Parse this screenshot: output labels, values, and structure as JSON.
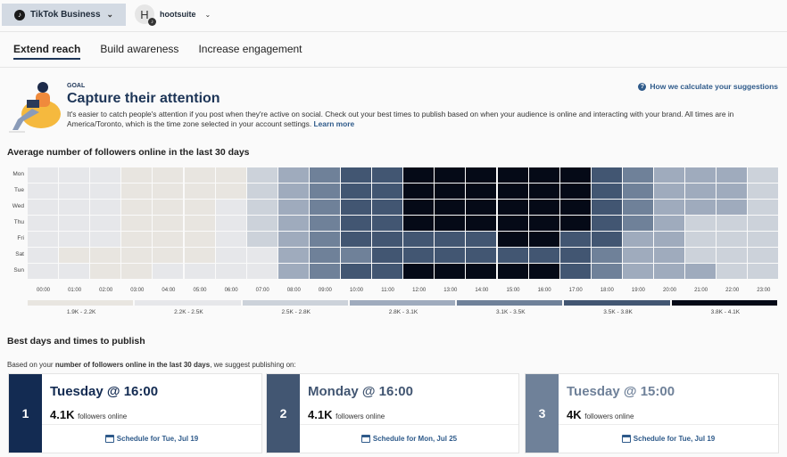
{
  "header": {
    "account": "TikTok Business",
    "org_initial": "H",
    "org": "hootsuite"
  },
  "tabs": [
    {
      "label": "Extend reach",
      "active": true
    },
    {
      "label": "Build awareness"
    },
    {
      "label": "Increase engagement"
    }
  ],
  "goal": {
    "label": "GOAL",
    "title": "Capture their attention",
    "description": "It's easier to catch people's attention if you post when they're active on social. Check out your best times to publish based on when your audience is online and interacting with your brand. All times are in America/Toronto, which is the time zone selected in your account settings.",
    "learn_more": "Learn more",
    "how_link": "How we calculate your suggestions"
  },
  "heatmap_title": "Average number of followers online in the last 30 days",
  "chart_data": {
    "type": "heatmap",
    "title": "Average number of followers online in the last 30 days",
    "y_categories": [
      "Mon",
      "Tue",
      "Wed",
      "Thu",
      "Fri",
      "Sat",
      "Sun"
    ],
    "x_categories": [
      "00:00",
      "01:00",
      "02:00",
      "03:00",
      "04:00",
      "05:00",
      "06:00",
      "07:00",
      "08:00",
      "09:00",
      "10:00",
      "11:00",
      "12:00",
      "13:00",
      "14:00",
      "15:00",
      "16:00",
      "17:00",
      "18:00",
      "19:00",
      "20:00",
      "21:00",
      "22:00",
      "23:00"
    ],
    "legend": [
      {
        "label": "1.9K - 2.2K",
        "color": "#e8e5e0"
      },
      {
        "label": "2.2K - 2.5K",
        "color": "#e6e7ea"
      },
      {
        "label": "2.5K - 2.8K",
        "color": "#ccd2da"
      },
      {
        "label": "2.8K - 3.1K",
        "color": "#9fabbd"
      },
      {
        "label": "3.1K - 3.5K",
        "color": "#6f8199"
      },
      {
        "label": "3.5K - 3.8K",
        "color": "#425672"
      },
      {
        "label": "3.8K - 4.1K",
        "color": "#050a17"
      }
    ],
    "bucket_index": [
      [
        1,
        1,
        1,
        0,
        0,
        0,
        0,
        2,
        3,
        4,
        5,
        5,
        6,
        6,
        6,
        6,
        6,
        6,
        5,
        4,
        3,
        3,
        3,
        2
      ],
      [
        1,
        1,
        1,
        0,
        0,
        0,
        0,
        2,
        3,
        4,
        5,
        5,
        6,
        6,
        6,
        6,
        6,
        6,
        5,
        4,
        3,
        3,
        3,
        2
      ],
      [
        1,
        1,
        1,
        0,
        0,
        0,
        1,
        2,
        3,
        4,
        5,
        5,
        6,
        6,
        6,
        6,
        6,
        6,
        5,
        4,
        3,
        3,
        3,
        2
      ],
      [
        1,
        1,
        1,
        0,
        0,
        0,
        1,
        2,
        3,
        4,
        5,
        5,
        6,
        6,
        6,
        6,
        6,
        6,
        5,
        4,
        3,
        2,
        2,
        2
      ],
      [
        1,
        1,
        1,
        0,
        0,
        0,
        1,
        2,
        3,
        4,
        5,
        5,
        5,
        5,
        5,
        6,
        6,
        5,
        5,
        3,
        3,
        2,
        2,
        2
      ],
      [
        1,
        0,
        0,
        0,
        0,
        0,
        1,
        1,
        3,
        4,
        4,
        5,
        5,
        5,
        5,
        5,
        5,
        5,
        4,
        3,
        3,
        2,
        2,
        2
      ],
      [
        1,
        1,
        0,
        0,
        1,
        1,
        1,
        1,
        3,
        4,
        5,
        5,
        6,
        6,
        6,
        6,
        6,
        5,
        4,
        3,
        3,
        3,
        2,
        2
      ]
    ]
  },
  "best": {
    "title": "Best days and times to publish",
    "intro_pre": "Based on your ",
    "intro_bold": "number of followers online in the last 30 days",
    "intro_post": ", we suggest publishing on:",
    "cards": [
      {
        "rank": "1",
        "when": "Tuesday @ 16:00",
        "count": "4.1K",
        "count_label": "followers online",
        "schedule": "Schedule for Tue, Jul 19",
        "color": "#132b52"
      },
      {
        "rank": "2",
        "when": "Monday @ 16:00",
        "count": "4.1K",
        "count_label": "followers online",
        "schedule": "Schedule for Mon, Jul 25",
        "color": "#425672"
      },
      {
        "rank": "3",
        "when": "Tuesday @ 15:00",
        "count": "4K",
        "count_label": "followers online",
        "schedule": "Schedule for Tue, Jul 19",
        "color": "#6f8199"
      }
    ]
  }
}
